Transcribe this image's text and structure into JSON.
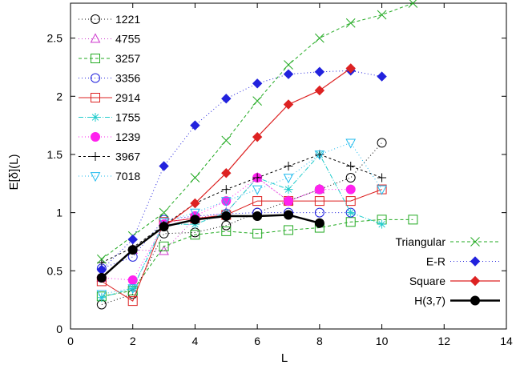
{
  "chart_data": {
    "type": "line",
    "xlabel": "L",
    "ylabel": "E[δ](L)",
    "xlim": [
      0,
      14
    ],
    "ylim": [
      0,
      2.8
    ],
    "xticks": [
      0,
      2,
      4,
      6,
      8,
      10,
      12,
      14
    ],
    "xtick_labels": [
      "0",
      "2",
      "4",
      "6",
      "8",
      "10",
      "12",
      "14"
    ],
    "yticks": [
      0,
      0.5,
      1,
      1.5,
      2,
      2.5
    ],
    "ytick_labels": [
      "0",
      "0.5",
      "1",
      "1.5",
      "2",
      "2.5"
    ],
    "grid": false,
    "legend_left_position": "top-left",
    "legend_right_position": "bottom-right",
    "series": [
      {
        "name": "1221",
        "legend": "left",
        "color": "#000000",
        "dash": "1,3",
        "marker": "circle-open",
        "lineWidth": 1,
        "x": [
          1,
          2,
          3,
          4,
          5,
          6,
          7,
          8,
          9,
          10
        ],
        "y": [
          0.21,
          0.3,
          0.82,
          0.83,
          0.89,
          1.0,
          1.1,
          1.2,
          1.3,
          1.6
        ]
      },
      {
        "name": "4755",
        "legend": "left",
        "color": "#cc33cc",
        "dash": "1,3",
        "marker": "triangle-open",
        "lineWidth": 1,
        "x": [
          1,
          2,
          3,
          4,
          5,
          6,
          7,
          8
        ],
        "y": [
          0.44,
          0.68,
          0.67,
          0.95,
          1.0,
          1.3,
          1.1,
          1.2
        ]
      },
      {
        "name": "3257",
        "legend": "left",
        "color": "#22aa22",
        "dash": "4,3",
        "marker": "square-open",
        "lineWidth": 1,
        "x": [
          1,
          2,
          3,
          4,
          5,
          6,
          7,
          8,
          9,
          10,
          11
        ],
        "y": [
          0.28,
          0.33,
          0.71,
          0.81,
          0.84,
          0.82,
          0.85,
          0.87,
          0.92,
          0.94,
          0.94
        ]
      },
      {
        "name": "3356",
        "legend": "left",
        "color": "#2222dd",
        "dash": "1,3",
        "marker": "circle-open",
        "lineWidth": 1,
        "x": [
          1,
          2,
          3,
          4,
          5,
          6,
          7,
          8,
          9
        ],
        "y": [
          0.52,
          0.62,
          0.94,
          0.97,
          0.99,
          1.0,
          1.0,
          1.0,
          1.0
        ]
      },
      {
        "name": "2914",
        "legend": "left",
        "color": "#dd2222",
        "dash": "",
        "marker": "square-open",
        "lineWidth": 1,
        "x": [
          1,
          2,
          3,
          4,
          5,
          6,
          7,
          8,
          9,
          10
        ],
        "y": [
          0.41,
          0.24,
          0.92,
          0.95,
          0.98,
          1.1,
          1.1,
          1.1,
          1.1,
          1.2
        ]
      },
      {
        "name": "1755",
        "legend": "left",
        "color": "#22cccc",
        "dash": "6,2,1,2",
        "marker": "star",
        "lineWidth": 1,
        "x": [
          1,
          2,
          3,
          4,
          5,
          6,
          7,
          8,
          9,
          10
        ],
        "y": [
          0.27,
          0.35,
          0.9,
          0.9,
          1.0,
          1.3,
          1.2,
          1.5,
          1.0,
          0.9
        ]
      },
      {
        "name": "1239",
        "legend": "left",
        "color": "#ff22ee",
        "dash": "1,3",
        "marker": "circle-filled",
        "lineWidth": 1,
        "x": [
          1,
          2,
          3,
          4,
          5,
          6,
          7,
          8,
          9
        ],
        "y": [
          0.44,
          0.42,
          0.9,
          0.97,
          1.1,
          1.3,
          1.1,
          1.2,
          1.2
        ]
      },
      {
        "name": "3967",
        "legend": "left",
        "color": "#000000",
        "dash": "3,3",
        "marker": "plus",
        "lineWidth": 1,
        "x": [
          1,
          2,
          3,
          4,
          5,
          6,
          7,
          8,
          9,
          10
        ],
        "y": [
          0.57,
          0.7,
          0.89,
          1.08,
          1.2,
          1.3,
          1.4,
          1.5,
          1.4,
          1.3
        ]
      },
      {
        "name": "7018",
        "legend": "left",
        "color": "#22bbee",
        "dash": "1,3",
        "marker": "triangle-down-open",
        "lineWidth": 1,
        "x": [
          1,
          2,
          3,
          4,
          5,
          6,
          7,
          8,
          9,
          10
        ],
        "y": [
          0.3,
          0.35,
          0.92,
          1.0,
          1.1,
          1.2,
          1.3,
          1.5,
          1.6,
          1.2
        ]
      },
      {
        "name": "Triangular",
        "legend": "right",
        "color": "#22aa22",
        "dash": "4,3",
        "marker": "x",
        "lineWidth": 1,
        "x": [
          1,
          2,
          3,
          4,
          5,
          6,
          7,
          8,
          9,
          10,
          11
        ],
        "y": [
          0.6,
          0.8,
          1.0,
          1.3,
          1.62,
          1.96,
          2.27,
          2.5,
          2.63,
          2.7,
          2.8
        ]
      },
      {
        "name": "E-R",
        "legend": "right",
        "color": "#2222dd",
        "dash": "1,3",
        "marker": "diamond-filled",
        "lineWidth": 1,
        "x": [
          1,
          2,
          3,
          4,
          5,
          6,
          7,
          8,
          9,
          10
        ],
        "y": [
          0.51,
          0.77,
          1.4,
          1.75,
          1.98,
          2.11,
          2.19,
          2.21,
          2.22,
          2.17
        ]
      },
      {
        "name": "Square",
        "legend": "right",
        "color": "#dd2222",
        "dash": "",
        "marker": "diamond-filled",
        "lineWidth": 1.2,
        "x": [
          1,
          2,
          3,
          4,
          5,
          6,
          7,
          8,
          9
        ],
        "y": [
          0.44,
          0.68,
          0.88,
          1.08,
          1.34,
          1.65,
          1.93,
          2.05,
          2.24
        ]
      },
      {
        "name": "H(3,7)",
        "legend": "right",
        "color": "#000000",
        "dash": "",
        "marker": "circle-filled",
        "lineWidth": 2.4,
        "x": [
          1,
          2,
          3,
          4,
          5,
          6,
          7,
          8
        ],
        "y": [
          0.44,
          0.68,
          0.88,
          0.94,
          0.97,
          0.97,
          0.98,
          0.91
        ]
      }
    ]
  }
}
